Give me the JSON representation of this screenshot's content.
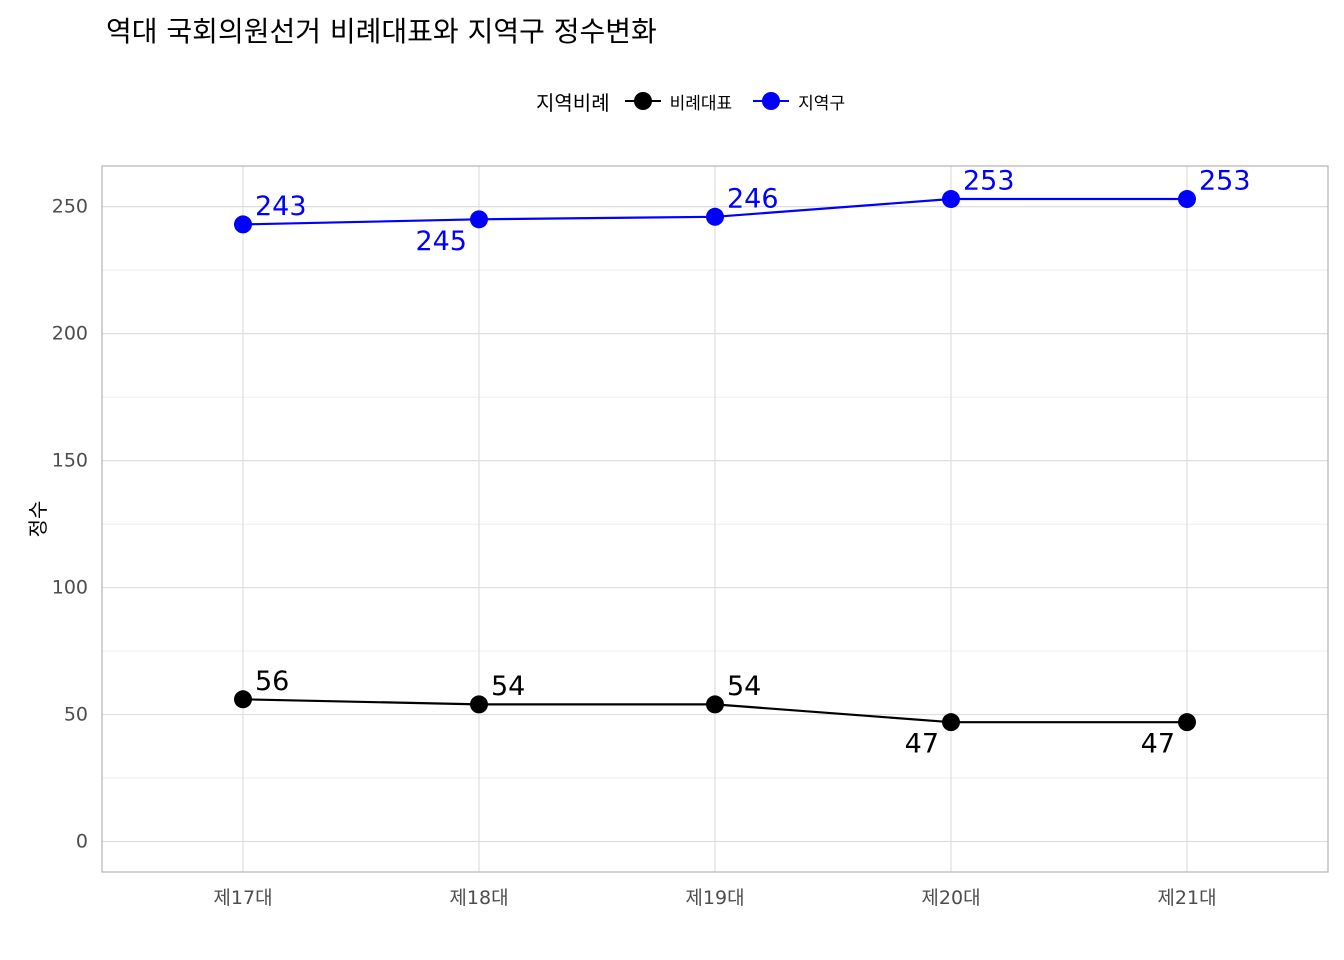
{
  "chart_data": {
    "type": "line",
    "title": "역대 국회의원선거 비례대표와 지역구 정수변화",
    "xlabel": "",
    "ylabel": "정수",
    "categories": [
      "제17대",
      "제18대",
      "제19대",
      "제20대",
      "제21대"
    ],
    "ylim": [
      -12,
      266
    ],
    "yticks": [
      0,
      50,
      100,
      150,
      200,
      250
    ],
    "grid": true,
    "legend": {
      "title": "지역비례",
      "position": "top",
      "entries": [
        "비례대표",
        "지역구"
      ]
    },
    "series": [
      {
        "name": "비례대표",
        "color": "#000000",
        "values": [
          56,
          54,
          54,
          47,
          47
        ],
        "label_side": [
          "above",
          "above",
          "above",
          "below",
          "below"
        ]
      },
      {
        "name": "지역구",
        "color": "#0000ff",
        "values": [
          243,
          245,
          246,
          253,
          253
        ],
        "label_side": [
          "above",
          "below",
          "above",
          "above",
          "above"
        ]
      }
    ]
  }
}
